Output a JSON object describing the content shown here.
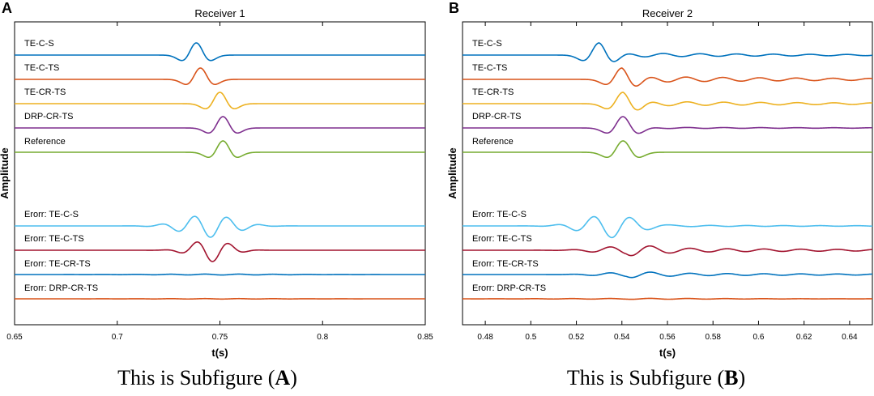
{
  "figure": {
    "captions": [
      {
        "prefix": "This is Subfigure (",
        "letter": "A",
        "suffix": ")"
      },
      {
        "prefix": "This is Subfigure (",
        "letter": "B",
        "suffix": ")"
      }
    ]
  },
  "chart_data": [
    {
      "type": "line",
      "panel_letter": "A",
      "title": "Receiver 1",
      "xlabel": "t(s)",
      "ylabel": "Amplitude",
      "xlim": [
        0.65,
        0.85
      ],
      "xticks": [
        0.65,
        0.7,
        0.75,
        0.8,
        0.85
      ],
      "xtick_labels": [
        "0.65",
        "0.7",
        "0.75",
        "0.8",
        "0.85"
      ],
      "series": [
        {
          "name": "TE-C-S",
          "color": "#0072BD",
          "center": 0.7385,
          "amplitude": 1.0,
          "freq": 55,
          "width": 0.0085,
          "tail": 0.0,
          "shape": "wavelet"
        },
        {
          "name": "TE-C-TS",
          "color": "#D95319",
          "center": 0.7405,
          "amplitude": 1.0,
          "freq": 55,
          "width": 0.0075,
          "tail": 0.0,
          "shape": "wavelet"
        },
        {
          "name": "TE-CR-TS",
          "color": "#EDB120",
          "center": 0.75,
          "amplitude": 1.0,
          "freq": 55,
          "width": 0.0075,
          "tail": 0.0,
          "shape": "wavelet"
        },
        {
          "name": "DRP-CR-TS",
          "color": "#7E2F8E",
          "center": 0.7515,
          "amplitude": 1.0,
          "freq": 55,
          "width": 0.0075,
          "tail": 0.0,
          "shape": "wavelet"
        },
        {
          "name": "Reference",
          "color": "#77AC30",
          "center": 0.7515,
          "amplitude": 1.0,
          "freq": 55,
          "width": 0.0075,
          "tail": 0.0,
          "shape": "wavelet"
        },
        {
          "name": "Erorr: TE-C-S",
          "color": "#4DBEEE",
          "center": 0.7445,
          "amplitude": 1.0,
          "freq": 62,
          "width": 0.012,
          "tail": 0.0,
          "shape": "error"
        },
        {
          "name": "Erorr: TE-C-TS",
          "color": "#A2142F",
          "center": 0.7455,
          "amplitude": 1.0,
          "freq": 62,
          "width": 0.0085,
          "tail": 0.0,
          "shape": "error"
        },
        {
          "name": "Erorr: TE-CR-TS",
          "color": "#0072BD",
          "center": 0.75,
          "amplitude": 0.04,
          "freq": 60,
          "width": 0.03,
          "tail": 0.0,
          "shape": "error"
        },
        {
          "name": "Erorr: DRP-CR-TS",
          "color": "#D95319",
          "center": 0.75,
          "amplitude": 0.02,
          "freq": 60,
          "width": 0.03,
          "tail": 0.0,
          "shape": "error"
        }
      ]
    },
    {
      "type": "line",
      "panel_letter": "B",
      "title": "Receiver 2",
      "xlabel": "t(s)",
      "ylabel": "Amplitude",
      "xlim": [
        0.47,
        0.65
      ],
      "xticks": [
        0.48,
        0.5,
        0.52,
        0.54,
        0.56,
        0.58,
        0.6,
        0.62,
        0.64
      ],
      "xtick_labels": [
        "0.48",
        "0.5",
        "0.52",
        "0.54",
        "0.56",
        "0.58",
        "0.6",
        "0.62",
        "0.64"
      ],
      "series": [
        {
          "name": "TE-C-S",
          "color": "#0072BD",
          "center": 0.53,
          "amplitude": 1.0,
          "freq": 55,
          "width": 0.0085,
          "tail": 0.18,
          "shape": "wavelet"
        },
        {
          "name": "TE-C-TS",
          "color": "#D95319",
          "center": 0.54,
          "amplitude": 1.0,
          "freq": 55,
          "width": 0.0085,
          "tail": 0.28,
          "shape": "wavelet"
        },
        {
          "name": "TE-CR-TS",
          "color": "#EDB120",
          "center": 0.5405,
          "amplitude": 1.0,
          "freq": 55,
          "width": 0.0085,
          "tail": 0.22,
          "shape": "wavelet"
        },
        {
          "name": "DRP-CR-TS",
          "color": "#7E2F8E",
          "center": 0.5405,
          "amplitude": 1.0,
          "freq": 55,
          "width": 0.0085,
          "tail": 0.06,
          "shape": "wavelet"
        },
        {
          "name": "Reference",
          "color": "#77AC30",
          "center": 0.5405,
          "amplitude": 1.0,
          "freq": 55,
          "width": 0.0085,
          "tail": 0.0,
          "shape": "wavelet"
        },
        {
          "name": "Erorr: TE-C-S",
          "color": "#4DBEEE",
          "center": 0.5345,
          "amplitude": 1.0,
          "freq": 62,
          "width": 0.011,
          "tail": 0.08,
          "shape": "error"
        },
        {
          "name": "Erorr: TE-C-TS",
          "color": "#A2142F",
          "center": 0.542,
          "amplitude": 0.35,
          "freq": 60,
          "width": 0.012,
          "tail": 0.22,
          "shape": "error"
        },
        {
          "name": "Erorr: TE-CR-TS",
          "color": "#0072BD",
          "center": 0.542,
          "amplitude": 0.18,
          "freq": 60,
          "width": 0.012,
          "tail": 0.14,
          "shape": "error"
        },
        {
          "name": "Erorr: DRP-CR-TS",
          "color": "#D95319",
          "center": 0.542,
          "amplitude": 0.03,
          "freq": 60,
          "width": 0.03,
          "tail": 0.02,
          "shape": "error"
        }
      ]
    }
  ]
}
